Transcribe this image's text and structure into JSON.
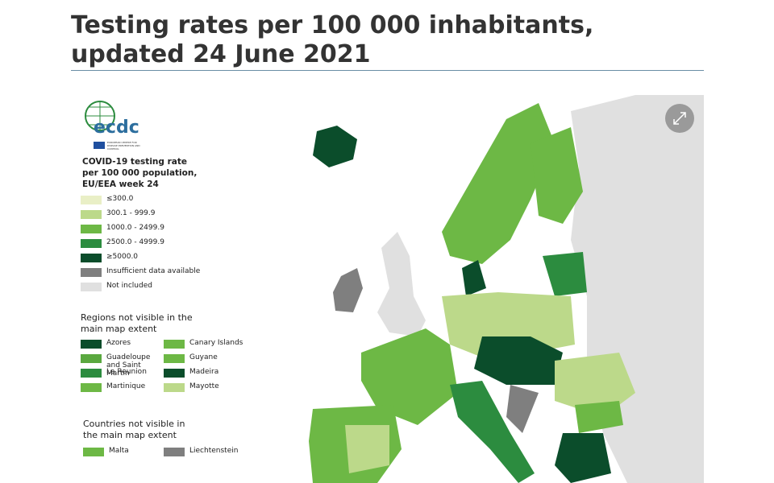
{
  "title": "Testing rates per 100 000 inhabitants, updated 24 June 2021",
  "logo": {
    "text": "ecdc",
    "subtitle": "EUROPEAN CENTRE FOR DISEASE PREVENTION AND CONTROL"
  },
  "legend": {
    "title": "COVID-19 testing rate per 100 000 population, EU/EEA week 24",
    "items": [
      {
        "label": "≤300.0",
        "color": "#e9efc6"
      },
      {
        "label": "300.1 - 999.9",
        "color": "#bcd98a"
      },
      {
        "label": "1000.0 - 2499.9",
        "color": "#6db845"
      },
      {
        "label": "2500.0 - 4999.9",
        "color": "#2c8c3f"
      },
      {
        "label": "≥5000.0",
        "color": "#0b4d2b"
      },
      {
        "label": "Insufficient data available",
        "color": "#7f7f7f"
      },
      {
        "label": "Not included",
        "color": "#e0e0e0"
      }
    ]
  },
  "regions": {
    "heading": "Regions not visible in the main map extent",
    "items": [
      {
        "label": "Azores",
        "color": "#0b4d2b"
      },
      {
        "label": "Guadeloupe and Saint Martin",
        "color": "#5aa83f"
      },
      {
        "label": "La Reunion",
        "color": "#2c8c3f"
      },
      {
        "label": "Martinique",
        "color": "#6db845"
      },
      {
        "label": "Canary Islands",
        "color": "#6db845"
      },
      {
        "label": "Guyane",
        "color": "#6db845"
      },
      {
        "label": "Madeira",
        "color": "#0b4d2b"
      },
      {
        "label": "Mayotte",
        "color": "#bcd98a"
      }
    ]
  },
  "countries": {
    "heading": "Countries not visible in the main map extent",
    "items": [
      {
        "label": "Malta",
        "color": "#6db845"
      },
      {
        "label": "Liechtenstein",
        "color": "#7f7f7f"
      }
    ]
  }
}
